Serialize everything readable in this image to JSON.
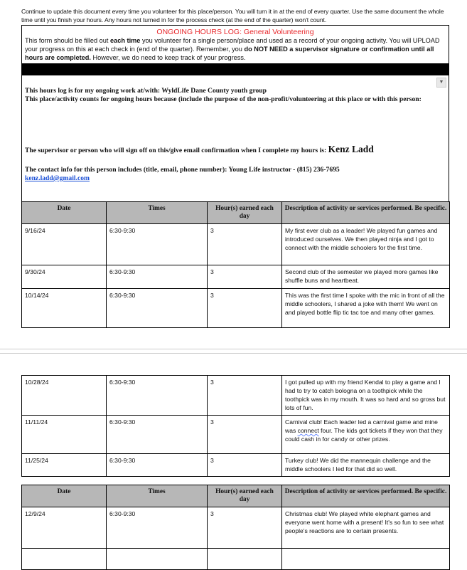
{
  "intro": "Continue to update this document every time you volunteer for this place/person. You will turn it in at the end of every quarter. Use the same document the whole time until you finish your hours. Any hours not turned in for the process check (at the end of the quarter) won't count.",
  "form": {
    "title": "ONGOING HOURS LOG: General Volunteering",
    "p1": "This form should be filled out ",
    "p1b": "each time",
    "p2": " you volunteer for a single person/place and used as a record of your ongoing activity. You will UPLOAD your progress on this at each check in (end of the quarter). Remember, you ",
    "p2b": "do NOT NEED a supervisor signature or confirmation until all hours are completed.",
    "p3": " However, we do need to keep track of your progress.",
    "work_label": "This hours log is for my ongoing work at/with: WyldLife Dane County youth group",
    "purpose_label": "This place/activity counts for ongoing hours because (include the purpose of the non-profit/volunteering at this place or with this person:",
    "supervisor_label": "The supervisor or person who will sign off on this/give email confirmation when I complete my hours is: ",
    "supervisor_name": "Kenz Ladd",
    "contact_label": "The contact info for this person includes (title, email, phone number): Young Life instructor - (815) 236-7695",
    "contact_email": "kenz.ladd@gmail.com",
    "dropdown_icon": "triangle-down"
  },
  "table": {
    "headers": [
      "Date",
      "Times",
      "Hour(s) earned each day",
      "Description of activity or services performed. Be specific."
    ],
    "rows": [
      {
        "date": "9/16/24",
        "times": "6:30-9:30",
        "hours": "3",
        "desc": "My first ever club as a leader! We played fun games and introduced ourselves. We then played ninja and I got to connect with the middle schoolers for the first time."
      },
      {
        "date": "9/30/24",
        "times": "6:30-9:30",
        "hours": "3",
        "desc": "Second club of the semester we played more games like shuffle buns and heartbeat."
      },
      {
        "date": "10/14/24",
        "times": "6:30-9:30",
        "hours": "3",
        "desc": "This was the first time I spoke with the mic in front of all the middle schoolers, I shared a joke with them! We went on and played bottle flip tic tac toe and many other games."
      },
      {
        "date": "10/28/24",
        "times": "6:30-9:30",
        "hours": "3",
        "desc": "I got pulled up with my friend Kendal to play a game and I had to try to catch bologna on a toothpick while the toothpick was in my mouth. It was so hard and so gross but lots of fun."
      },
      {
        "date": "11/11/24",
        "times": "6:30-9:30",
        "hours": "3",
        "desc_a": "Carnival club! Each leader led a carnival game and mine was ",
        "desc_sq": "connect",
        "desc_b": " four. The kids got tickets if they won that they could cash in for candy or other prizes."
      },
      {
        "date": "11/25/24",
        "times": "6:30-9:30",
        "hours": "3",
        "desc": "Turkey club! We did the mannequin challenge and the middle schoolers I led for that did so well."
      },
      {
        "date": "12/9/24",
        "times": "6:30-9:30",
        "hours": "3",
        "desc": "Christmas club! We played white elephant games and everyone went home with a present! It's so fun to see what people's reactions are to certain presents."
      }
    ]
  }
}
